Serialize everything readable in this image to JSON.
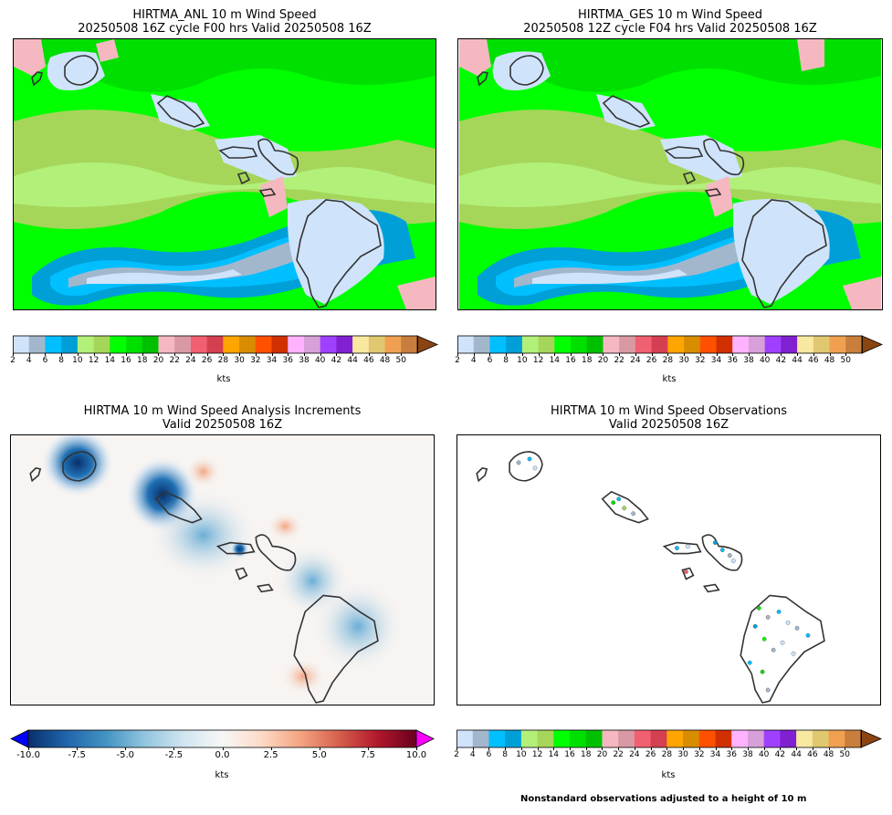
{
  "panels": {
    "anl": {
      "title_line1": "HIRTMA_ANL 10 m Wind Speed",
      "title_line2": "20250508 16Z cycle F00 hrs Valid 20250508 16Z"
    },
    "ges": {
      "title_line1": "HIRTMA_GES 10 m Wind Speed",
      "title_line2": "20250508 12Z cycle F04 hrs Valid 20250508 16Z"
    },
    "inc": {
      "title_line1": "HIRTMA 10 m Wind Speed Analysis Increments",
      "title_line2": "Valid 20250508 16Z"
    },
    "obs": {
      "title_line1": "HIRTMA 10 m Wind Speed Observations",
      "title_line2": "Valid 20250508 16Z"
    }
  },
  "speed_colorbar": {
    "ticks": [
      "2",
      "4",
      "6",
      "8",
      "10",
      "12",
      "14",
      "16",
      "18",
      "20",
      "22",
      "24",
      "26",
      "28",
      "30",
      "32",
      "34",
      "36",
      "38",
      "40",
      "42",
      "44",
      "46",
      "48",
      "50"
    ],
    "unit": "kts",
    "colors": [
      "#cfe4fb",
      "#a3b7cc",
      "#00bfff",
      "#009fd8",
      "#b2f07a",
      "#a5d65a",
      "#00ff00",
      "#00e000",
      "#00c000",
      "#f5b8c0",
      "#d999a4",
      "#f06070",
      "#d54050",
      "#ffa500",
      "#d88c00",
      "#ff5000",
      "#d03000",
      "#ffb3ff",
      "#d8a0d8",
      "#a040ff",
      "#8020d0",
      "#f8e8a0",
      "#e0c870",
      "#f0a050",
      "#c87e3c"
    ],
    "extend_color": "#8b4513"
  },
  "increment_colorbar": {
    "ticks": [
      "-10.0",
      "-7.5",
      "-5.0",
      "-2.5",
      "0.0",
      "2.5",
      "5.0",
      "7.5",
      "10.0"
    ],
    "unit": "kts",
    "under_color": "#0000ff",
    "over_color": "#ff00ff"
  },
  "observation_note": "Nonstandard observations adjusted to a height of 10 m"
}
